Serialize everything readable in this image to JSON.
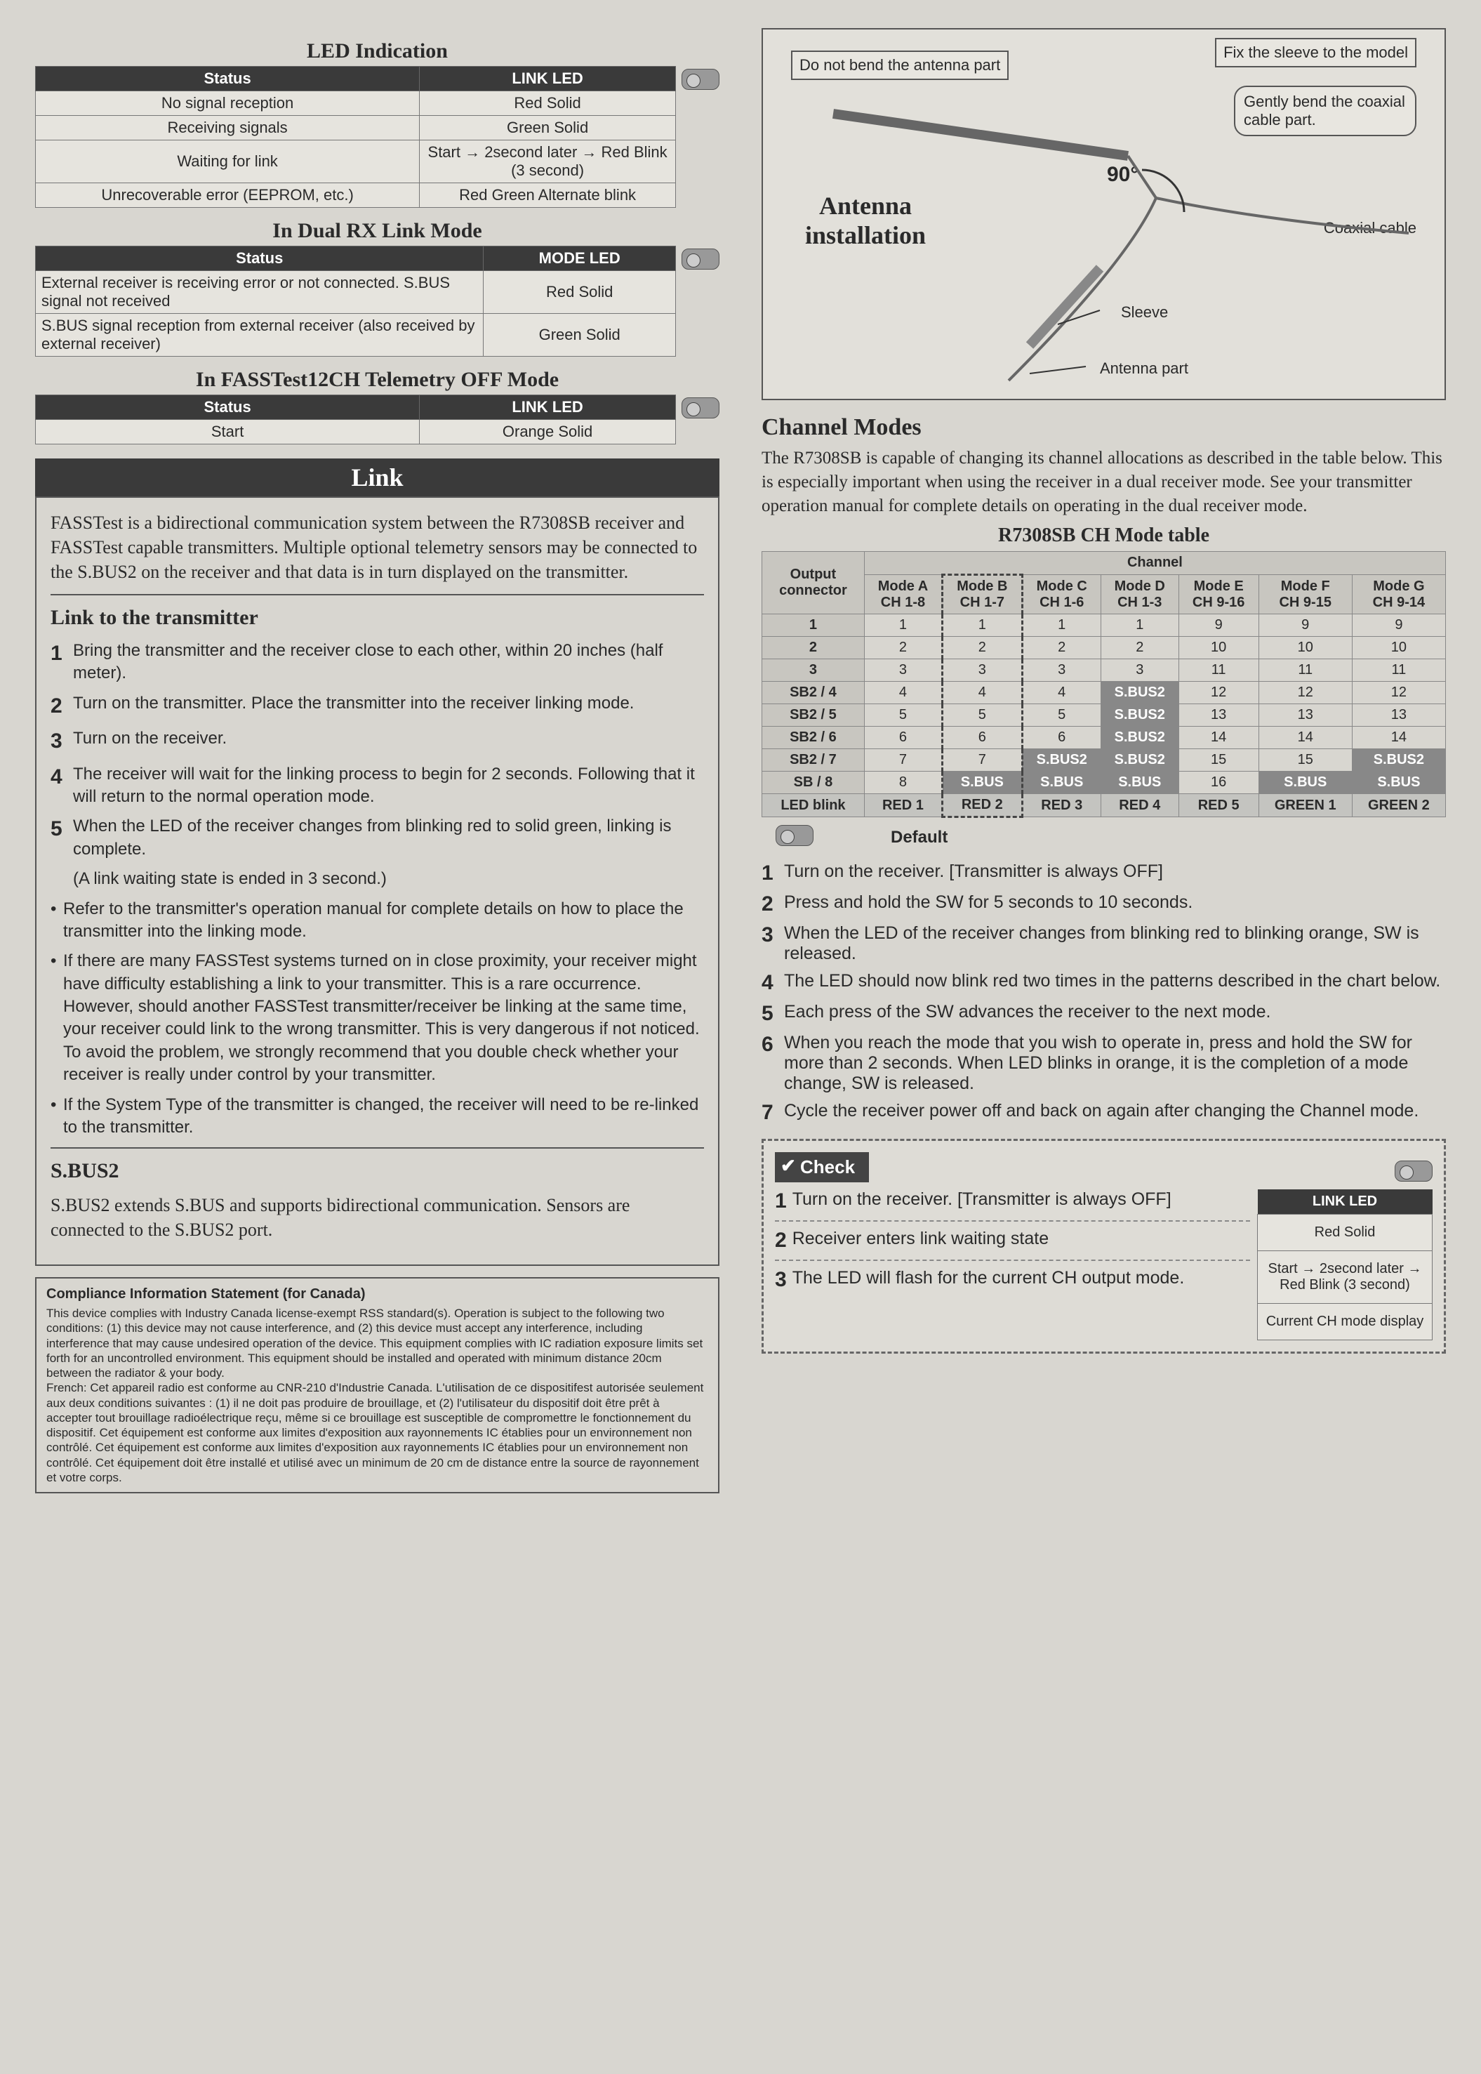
{
  "left": {
    "led_indication": {
      "title": "LED Indication",
      "headers": [
        "Status",
        "LINK LED"
      ],
      "rows": [
        {
          "status": "No signal reception",
          "led": "Red Solid"
        },
        {
          "status": "Receiving signals",
          "led": "Green Solid"
        },
        {
          "status": "Waiting for link",
          "led": "Start → 2second later → Red Blink (3 second)"
        },
        {
          "status": "Unrecoverable error (EEPROM, etc.)",
          "led": "Red Green Alternate blink"
        }
      ]
    },
    "dual_rx": {
      "title": "In Dual RX Link Mode",
      "headers": [
        "Status",
        "MODE LED"
      ],
      "rows": [
        {
          "status": "External receiver is receiving error or not connected. S.BUS signal not received",
          "led": "Red Solid"
        },
        {
          "status": "S.BUS signal reception from external receiver (also received by external receiver)",
          "led": "Green Solid"
        }
      ]
    },
    "fasstest_off": {
      "title": "In FASSTest12CH Telemetry OFF Mode",
      "headers": [
        "Status",
        "LINK LED"
      ],
      "rows": [
        {
          "status": "Start",
          "led": "Orange Solid"
        }
      ]
    },
    "link": {
      "header": "Link",
      "intro": "FASSTest is a bidirectional communication system between the R7308SB receiver and FASSTest capable transmitters. Multiple optional telemetry sensors may be connected to the S.BUS2 on the receiver and that data is in turn displayed on the transmitter.",
      "sub1_title": "Link to the transmitter",
      "steps": [
        "Bring the transmitter and the receiver close to each other, within 20 inches (half meter).",
        "Turn on the transmitter. Place the transmitter into the receiver linking mode.",
        "Turn on the receiver.",
        "The receiver will wait for the linking process to begin for 2 seconds. Following that it will return to the normal operation mode.",
        "When the LED of the receiver changes from blinking red to solid green, linking is complete."
      ],
      "note5": "(A link waiting state is ended in 3 second.)",
      "bullets": [
        "Refer to the transmitter's operation manual for complete details on how to place the transmitter into the linking mode.",
        "If there are many FASSTest systems turned on in close proximity, your receiver might have difficulty establishing a link to your transmitter. This is a rare occurrence. However, should another FASSTest transmitter/receiver be linking at the same time, your receiver could link to the wrong transmitter. This is very dangerous if not noticed. To avoid the problem, we strongly recommend that you double check whether your receiver is really under control by your transmitter.",
        "If the System Type of the transmitter is changed, the receiver will need to be re-linked to the transmitter."
      ],
      "sbus2_title": "S.BUS2",
      "sbus2_text": "S.BUS2 extends S.BUS and supports bidirectional communication. Sensors are connected to the S.BUS2 port."
    },
    "compliance": {
      "title": "Compliance Information Statement (for Canada)",
      "text_en": "This device complies with Industry Canada license-exempt RSS standard(s). Operation is subject to the following two conditions: (1) this device may not cause interference, and (2) this device must accept any interference, including interference that may cause undesired operation of the device. This equipment complies with IC radiation exposure limits set forth for an uncontrolled environment. This equipment should be installed and operated with minimum distance 20cm between the radiator & your body.",
      "text_fr": "French: Cet appareil radio est conforme au CNR-210 d'Industrie Canada. L'utilisation de ce dispositifest autorisée seulement aux deux conditions suivantes : (1) il ne doit pas produire de brouillage, et (2) l'utilisateur du dispositif doit être prêt à accepter tout brouillage radioélectrique reçu, même si ce brouillage est susceptible de compromettre le fonctionnement du dispositif. Cet équipement est conforme aux limites d'exposition aux rayonnements IC établies pour un environnement non contrôlé. Cet équipement est conforme aux limites d'exposition aux rayonnements IC établies pour un environnement non contrôlé. Cet équipement doit être installé et utilisé avec un minimum de 20 cm de distance entre la source de rayonnement et votre corps."
    }
  },
  "right": {
    "antenna": {
      "dont_bend": "Do not bend the antenna part",
      "fix_sleeve": "Fix the sleeve to the model",
      "gently_bend": "Gently bend the coaxial cable part.",
      "title_l1": "Antenna",
      "title_l2": "installation",
      "angle": "90°",
      "coax": "Coaxial cable",
      "sleeve": "Sleeve",
      "antenna_part": "Antenna part"
    },
    "channel_modes": {
      "title": "Channel Modes",
      "intro": "The R7308SB is capable of changing its channel allocations as described in the table below. This is especially important when using the receiver in a dual receiver mode. See your transmitter operation manual for complete details on operating in the dual receiver mode.",
      "table_title": "R7308SB CH Mode table",
      "channel_header": "Channel",
      "output_header": "Output connector",
      "mode_headers": [
        {
          "l1": "Mode A",
          "l2": "CH 1-8"
        },
        {
          "l1": "Mode B",
          "l2": "CH 1-7"
        },
        {
          "l1": "Mode C",
          "l2": "CH 1-6"
        },
        {
          "l1": "Mode D",
          "l2": "CH 1-3"
        },
        {
          "l1": "Mode E",
          "l2": "CH 9-16"
        },
        {
          "l1": "Mode F",
          "l2": "CH 9-15"
        },
        {
          "l1": "Mode G",
          "l2": "CH 9-14"
        }
      ],
      "rows": [
        {
          "out": "1",
          "cells": [
            {
              "v": "1"
            },
            {
              "v": "1"
            },
            {
              "v": "1"
            },
            {
              "v": "1"
            },
            {
              "v": "9"
            },
            {
              "v": "9"
            },
            {
              "v": "9"
            }
          ]
        },
        {
          "out": "2",
          "cells": [
            {
              "v": "2"
            },
            {
              "v": "2"
            },
            {
              "v": "2"
            },
            {
              "v": "2"
            },
            {
              "v": "10"
            },
            {
              "v": "10"
            },
            {
              "v": "10"
            }
          ]
        },
        {
          "out": "3",
          "cells": [
            {
              "v": "3"
            },
            {
              "v": "3"
            },
            {
              "v": "3"
            },
            {
              "v": "3"
            },
            {
              "v": "11"
            },
            {
              "v": "11"
            },
            {
              "v": "11"
            }
          ]
        },
        {
          "out": "SB2 / 4",
          "cells": [
            {
              "v": "4"
            },
            {
              "v": "4"
            },
            {
              "v": "4"
            },
            {
              "v": "S.BUS2",
              "d": true
            },
            {
              "v": "12"
            },
            {
              "v": "12"
            },
            {
              "v": "12"
            }
          ]
        },
        {
          "out": "SB2 / 5",
          "cells": [
            {
              "v": "5"
            },
            {
              "v": "5"
            },
            {
              "v": "5"
            },
            {
              "v": "S.BUS2",
              "d": true
            },
            {
              "v": "13"
            },
            {
              "v": "13"
            },
            {
              "v": "13"
            }
          ]
        },
        {
          "out": "SB2 / 6",
          "cells": [
            {
              "v": "6"
            },
            {
              "v": "6"
            },
            {
              "v": "6"
            },
            {
              "v": "S.BUS2",
              "d": true
            },
            {
              "v": "14"
            },
            {
              "v": "14"
            },
            {
              "v": "14"
            }
          ]
        },
        {
          "out": "SB2 / 7",
          "cells": [
            {
              "v": "7"
            },
            {
              "v": "7"
            },
            {
              "v": "S.BUS2",
              "d": true
            },
            {
              "v": "S.BUS2",
              "d": true
            },
            {
              "v": "15"
            },
            {
              "v": "15"
            },
            {
              "v": "S.BUS2",
              "d": true
            }
          ]
        },
        {
          "out": "SB / 8",
          "cells": [
            {
              "v": "8"
            },
            {
              "v": "S.BUS",
              "d": true
            },
            {
              "v": "S.BUS",
              "d": true
            },
            {
              "v": "S.BUS",
              "d": true
            },
            {
              "v": "16"
            },
            {
              "v": "S.BUS",
              "d": true
            },
            {
              "v": "S.BUS",
              "d": true
            }
          ]
        }
      ],
      "led_row_label": "LED blink",
      "led_row": [
        "RED 1",
        "RED 2",
        "RED 3",
        "RED 4",
        "RED 5",
        "GREEN 1",
        "GREEN 2"
      ],
      "default_label": "Default",
      "default_col_index": 1,
      "steps": [
        "Turn on the receiver. [Transmitter is always OFF]",
        "Press and hold the SW for 5 seconds to 10 seconds.",
        "When the LED of the receiver changes from blinking red to blinking orange, SW is released.",
        "The LED should now blink red two times in the patterns described in the chart below.",
        "Each press of the SW advances the receiver to the next mode.",
        "When you reach the mode that you wish to operate in, press and hold the SW for more than 2 seconds. When LED blinks in orange, it is the completion of a mode change, SW is released.",
        "Cycle the receiver power off and back on again after changing the Channel mode."
      ]
    },
    "check": {
      "tab": "Check",
      "link_led_header": "LINK LED",
      "rows": [
        {
          "n": "1",
          "text": "Turn on the receiver. [Transmitter is always OFF]",
          "led": "Red Solid"
        },
        {
          "n": "2",
          "text": "Receiver enters link waiting state",
          "led": "Start → 2second later → Red Blink (3 second)"
        },
        {
          "n": "3",
          "text": "The LED will flash for the current CH output mode.",
          "led": "Current CH mode display"
        }
      ]
    }
  }
}
